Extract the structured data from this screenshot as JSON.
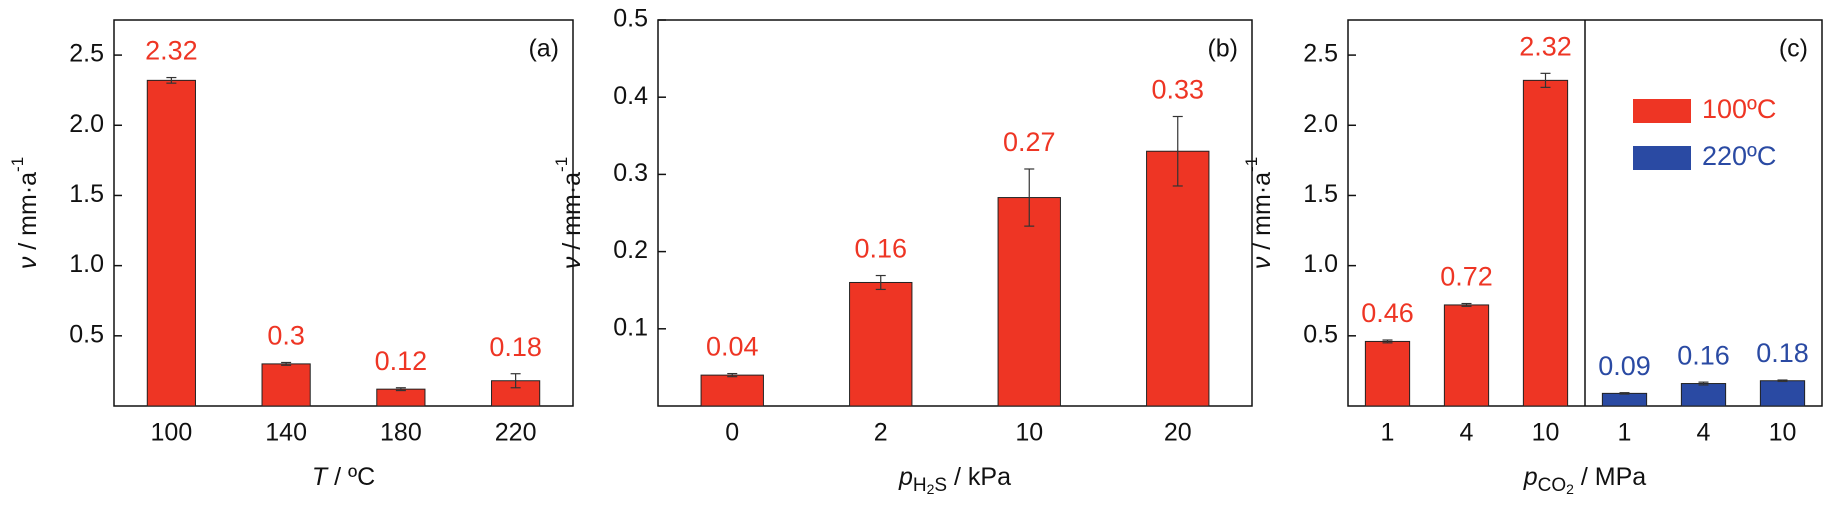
{
  "chart_data": [
    {
      "type": "bar",
      "panel": "(a)",
      "xlabel": [
        {
          "text": "T",
          "style": "italic"
        },
        {
          "text": " / ºC",
          "style": "normal"
        }
      ],
      "ylabel": [
        {
          "text": "ν",
          "style": "italic"
        },
        {
          "text": " / mm·a",
          "style": "normal"
        },
        {
          "text": "-1",
          "style": "sup"
        }
      ],
      "categories": [
        "100",
        "140",
        "180",
        "220"
      ],
      "values": [
        2.32,
        0.3,
        0.12,
        0.18
      ],
      "errors": [
        0.02,
        0.01,
        0.01,
        0.05
      ],
      "color": "#ee3524",
      "ylim": [
        0,
        2.75
      ],
      "yticks": [
        0.5,
        {
          "value": 1,
          "label": "1.0"
        },
        1.5,
        {
          "value": 2,
          "label": "2.0"
        },
        2.5
      ]
    },
    {
      "type": "bar",
      "panel": "(b)",
      "xlabel": [
        {
          "text": "p",
          "style": "italic"
        },
        {
          "text": "H",
          "style": "sub"
        },
        {
          "text": "2",
          "style": "subsub"
        },
        {
          "text": "S",
          "style": "sub"
        },
        {
          "text": " / kPa",
          "style": "normal"
        }
      ],
      "ylabel": [
        {
          "text": "ν",
          "style": "italic"
        },
        {
          "text": " / mm·a",
          "style": "normal"
        },
        {
          "text": "-1",
          "style": "sup"
        }
      ],
      "categories": [
        "0",
        "2",
        "10",
        "20"
      ],
      "values": [
        0.04,
        0.16,
        0.27,
        0.33
      ],
      "errors": [
        0.002,
        0.009,
        0.037,
        0.045
      ],
      "color": "#ee3524",
      "ylim": [
        0,
        0.5
      ],
      "yticks": [
        0.1,
        0.2,
        0.3,
        0.4,
        0.5
      ]
    },
    {
      "type": "bar",
      "panel": "(c)",
      "xlabel": [
        {
          "text": "p",
          "style": "italic"
        },
        {
          "text": "CO",
          "style": "sub"
        },
        {
          "text": "2",
          "style": "subsub"
        },
        {
          "text": " / MPa",
          "style": "normal"
        }
      ],
      "ylabel": [
        {
          "text": "ν",
          "style": "italic"
        },
        {
          "text": " / mm·a",
          "style": "normal"
        },
        {
          "text": "-1",
          "style": "sup"
        }
      ],
      "categories": [
        "1",
        "4",
        "10",
        "1",
        "4",
        "10"
      ],
      "series": [
        {
          "name": "100ºC",
          "color": "#ee3524",
          "values": [
            0.46,
            0.72,
            2.32,
            null,
            null,
            null
          ],
          "errors": [
            0.01,
            0.01,
            0.05,
            null,
            null,
            null
          ]
        },
        {
          "name": "220ºC",
          "color": "#2a4aa3",
          "values": [
            null,
            null,
            null,
            0.09,
            0.16,
            0.18
          ],
          "errors": [
            null,
            null,
            null,
            0.005,
            0.01,
            0.005
          ]
        }
      ],
      "ylim": [
        0,
        2.75
      ],
      "yticks": [
        0.5,
        {
          "value": 1,
          "label": "1.0"
        },
        1.5,
        {
          "value": 2,
          "label": "2.0"
        },
        2.5
      ]
    }
  ]
}
